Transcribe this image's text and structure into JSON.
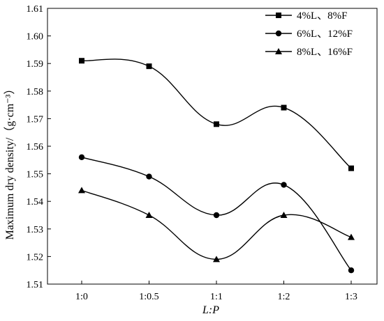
{
  "chart_data": {
    "type": "line",
    "x_categories": [
      "1:0",
      "1:0.5",
      "1:1",
      "1:2",
      "1:3"
    ],
    "xlabel": "L:P",
    "ylabel": "Maximum dry density/（g·cm⁻³）",
    "ylim": [
      1.51,
      1.61
    ],
    "yticks": [
      "1.51",
      "1.52",
      "1.53",
      "1.54",
      "1.55",
      "1.56",
      "1.57",
      "1.58",
      "1.59",
      "1.60",
      "1.61"
    ],
    "legend_position": "top-right",
    "grid": false,
    "series": [
      {
        "name": "4%L、8%F",
        "marker": "square",
        "values": [
          1.591,
          1.589,
          1.568,
          1.574,
          1.552
        ]
      },
      {
        "name": "6%L、12%F",
        "marker": "circle",
        "values": [
          1.556,
          1.549,
          1.535,
          1.546,
          1.515
        ]
      },
      {
        "name": "8%L、16%F",
        "marker": "triangle",
        "values": [
          1.544,
          1.535,
          1.519,
          1.535,
          1.527
        ]
      }
    ]
  }
}
